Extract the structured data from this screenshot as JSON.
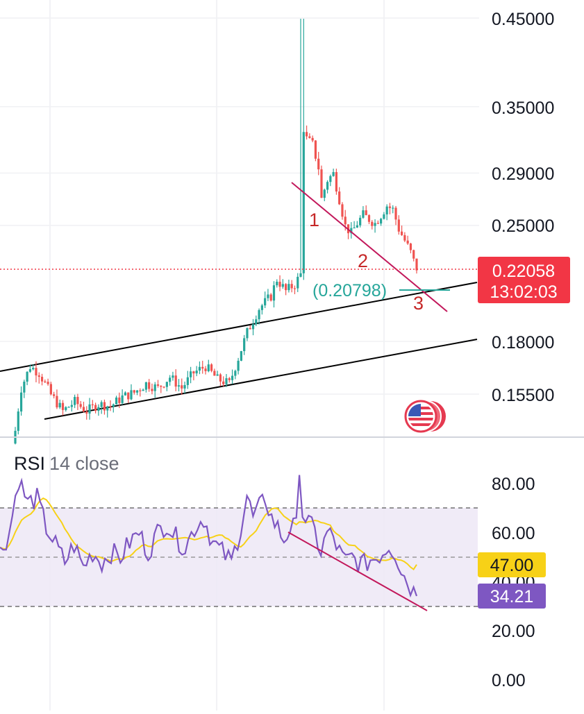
{
  "chart_data": [
    {
      "type": "candlestick",
      "title": "",
      "y_axis": {
        "scale": "log",
        "range": [
          0.138,
          0.455
        ],
        "tick_labels": [
          "0.45000",
          "0.35000",
          "0.29000",
          "0.25000",
          "0.18000",
          "0.15500"
        ],
        "tick_values": [
          0.45,
          0.35,
          0.29,
          0.25,
          0.18,
          0.155
        ],
        "position": "right"
      },
      "grid": true,
      "current_price": {
        "label": "0.22058",
        "value": 0.22058,
        "countdown": "13:02:03",
        "color": "#f23645"
      },
      "target_label": {
        "text": "(0.20798)",
        "value": 0.20798,
        "color": "#26a69a"
      },
      "wave_labels": [
        "1",
        "2",
        "3"
      ],
      "colors": {
        "up": "#26a69a",
        "down": "#ef5350",
        "channel": "#000000",
        "trendline": "#c2185b"
      },
      "trend_description_points": {
        "start_close": 0.142,
        "spike_high": 0.45,
        "last_close": 0.22058
      }
    },
    {
      "type": "line",
      "title": "RSI",
      "subtitle": "14 close",
      "y_axis": {
        "range": [
          0,
          100
        ],
        "tick_labels": [
          "80.00",
          "60.00",
          "40.00",
          "20.00",
          "0.00"
        ],
        "tick_values": [
          80,
          60,
          40,
          20,
          0
        ],
        "position": "right"
      },
      "bands": {
        "upper": 70,
        "middle": 50,
        "lower": 30
      },
      "series": [
        {
          "values_label": "34.21",
          "last": 34.21,
          "color": "#7e57c2"
        },
        {
          "values_label": "47.00",
          "last": 47.0,
          "color": "#f7d117"
        }
      ]
    }
  ],
  "icons": {
    "flag": "us-flag-icon"
  }
}
